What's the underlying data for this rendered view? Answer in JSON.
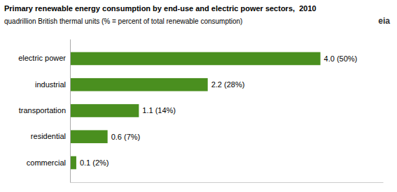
{
  "chart_data": {
    "type": "bar",
    "orientation": "horizontal",
    "title": "Primary renewable energy consumption by end-use and electric power sectors,  2010",
    "subtitle": "quadrillion British thermal units (% = percent of total renewable consumption)",
    "annotations": [
      "eia"
    ],
    "categories": [
      "commercial",
      "residential",
      "transportation",
      "industrial",
      "electric power"
    ],
    "values": [
      0.1,
      0.6,
      1.1,
      2.2,
      4.0
    ],
    "value_labels": [
      "0.1 (2%)",
      "0.6 (7%)",
      "1.1 (14%)",
      "2.2 (28%)",
      "4.0 (50%)"
    ],
    "data_labels": true,
    "color": "#4a8f1f",
    "xlim": [
      0,
      5.0
    ],
    "tick_labels": "y"
  }
}
